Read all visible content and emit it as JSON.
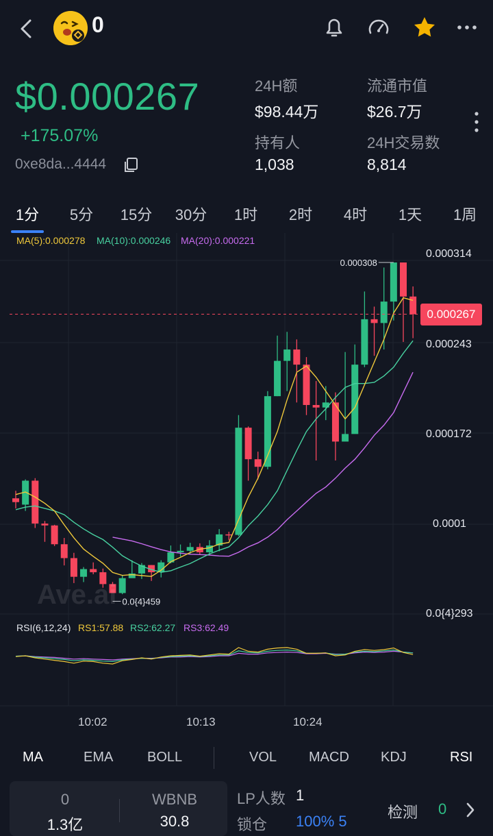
{
  "header": {
    "token_name": "0",
    "back_icon": "chevron-left-icon",
    "icons": [
      "bell-icon",
      "gauge-icon",
      "star-icon",
      "more-horizontal-icon"
    ],
    "star_color": "#f5b300"
  },
  "price": {
    "value": "$0.000267",
    "change": "+175.07%",
    "address": "0xe8da...4444",
    "up_color": "#2ebd85"
  },
  "stats": [
    {
      "label": "24H额",
      "value": "$98.44万"
    },
    {
      "label": "流通市值",
      "value": "$26.7万"
    },
    {
      "label": "持有人",
      "value": "1,038"
    },
    {
      "label": "24H交易数",
      "value": "8,814"
    }
  ],
  "timeframes": [
    "1分",
    "5分",
    "15分",
    "30分",
    "1时",
    "2时",
    "4时",
    "1天",
    "1周"
  ],
  "selected_timeframe": "1分",
  "chart_legend": {
    "ma5": "MA(5):0.000278",
    "ma10": "MA(10):0.000246",
    "ma20": "MA(20):0.000221",
    "rsi_title": "RSI(6,12,24)",
    "rs1": "RS1:57.88",
    "rs2": "RS2:62.27",
    "rs3": "RS3:62.49"
  },
  "chart_data": {
    "type": "candlestick",
    "y_axis_labels": [
      "0.000314",
      "0.000243",
      "0.000172",
      "0.0001",
      "0.0{4}293"
    ],
    "x_axis_labels": [
      "10:02",
      "10:13",
      "10:24"
    ],
    "current_price_label": "0.000267",
    "high_label": "0.000308",
    "low_label": "0.0{4}459",
    "watermark": "Ave.ai",
    "ylim": [
      2.93e-05,
      0.000314
    ],
    "candles": [
      [
        0.000121,
        0.000118,
        0.000127,
        0.000113
      ],
      [
        0.000116,
        0.000135,
        0.000136,
        0.000111
      ],
      [
        0.000135,
        0.000101,
        0.000137,
        9.75e-05
      ],
      [
        0.000101,
        9.95e-05,
        0.000103,
        8.65e-05
      ],
      [
        9.95e-05,
        8.46e-05,
        0.0001,
        8.32e-05
      ],
      [
        8.46e-05,
        7.36e-05,
        8.96e-05,
        6.78e-05
      ],
      [
        7.36e-05,
        5.88e-05,
        7.78e-05,
        5.38e-05
      ],
      [
        5.88e-05,
        6.49e-05,
        6.65e-05,
        5.46e-05
      ],
      [
        6.49e-05,
        6.24e-05,
        7.02e-05,
        6.08e-05
      ],
      [
        6.24e-05,
        5.3e-05,
        6.53e-05,
        5.01e-05
      ],
      [
        5.3e-05,
        4.59e-05,
        5.47e-05,
        4.59e-05
      ],
      [
        4.59e-05,
        5.77e-05,
        6.03e-05,
        4.5e-05
      ],
      [
        5.77e-05,
        6.14e-05,
        7.19e-05,
        5.83e-05
      ],
      [
        6.14e-05,
        6.81e-05,
        6.97e-05,
        5.71e-05
      ],
      [
        6.81e-05,
        6.24e-05,
        6.81e-05,
        5.55e-05
      ],
      [
        6.24e-05,
        7.02e-05,
        7.19e-05,
        5.83e-05
      ],
      [
        7.02e-05,
        7.82e-05,
        8.36e-05,
        6.94e-05
      ],
      [
        7.82e-05,
        7.94e-05,
        8.44e-05,
        7.48e-05
      ],
      [
        7.94e-05,
        8.24e-05,
        8.57e-05,
        7.65e-05
      ],
      [
        8.24e-05,
        7.82e-05,
        8.53e-05,
        7.65e-05
      ],
      [
        7.82e-05,
        8.36e-05,
        8.78e-05,
        7.57e-05
      ],
      [
        8.36e-05,
        9.24e-05,
        9.66e-05,
        7.9e-05
      ],
      [
        9.24e-05,
        9.2e-05,
        9.45e-05,
        8.78e-05
      ],
      [
        9.2e-05,
        0.000177,
        0.000187,
        9.12e-05
      ],
      [
        0.000177,
        0.000152,
        0.000178,
        0.000135
      ],
      [
        0.000152,
        0.000146,
        0.000158,
        0.000136
      ],
      [
        0.000146,
        0.000202,
        0.000206,
        0.000144
      ],
      [
        0.000202,
        0.00023,
        0.00025,
        0.000202
      ],
      [
        0.00023,
        0.000239,
        0.000253,
        0.000206
      ],
      [
        0.000239,
        0.000227,
        0.000247,
        0.000197
      ],
      [
        0.000227,
        0.000195,
        0.000233,
        0.000187
      ],
      [
        0.000195,
        0.000193,
        0.000214,
        0.000151
      ],
      [
        0.000193,
        0.000197,
        0.00021,
        0.000183
      ],
      [
        0.000197,
        0.000166,
        0.000205,
        0.000151
      ],
      [
        0.000166,
        0.000172,
        0.000237,
        0.000168
      ],
      [
        0.000172,
        0.000227,
        0.000243,
        0.000176
      ],
      [
        0.000227,
        0.000263,
        0.000285,
        0.000225
      ],
      [
        0.000263,
        0.00026,
        0.000273,
        0.000234
      ],
      [
        0.00026,
        0.000277,
        0.000304,
        0.000239
      ],
      [
        0.000277,
        0.000308,
        0.000308,
        0.000262
      ],
      [
        0.000308,
        0.000281,
        0.000308,
        0.000245
      ],
      [
        0.000281,
        0.000267,
        0.000289,
        0.000248
      ]
    ],
    "ma5": [
      0.000124,
      0.000126,
      0.000122,
      0.000117,
      0.000111,
      0.0001,
      8.97e-05,
      8.08e-05,
      7.5e-05,
      6.95e-05,
      6.22e-05,
      5.99e-05,
      6.05e-05,
      5.97e-05,
      5.91e-05,
      6.4e-05,
      7.07e-05,
      7.43e-05,
      7.8e-05,
      8.07e-05,
      8.18e-05,
      8.47e-05,
      8.6e-05,
      0.000104,
      0.000122,
      0.000137,
      0.000155,
      0.000174,
      0.000199,
      0.000221,
      0.000226,
      0.000217,
      0.000206,
      0.000195,
      0.000184,
      0.000193,
      0.000211,
      0.000229,
      0.000247,
      0.000268,
      0.00028,
      0.000278
    ],
    "ma10": [
      0.000112,
      0.000114,
      0.000115,
      0.000113,
      0.000111,
      0.000108,
      0.000102,
      9.68e-05,
      9.22e-05,
      8.83e-05,
      8.22e-05,
      7.55e-05,
      7.11e-05,
      6.73e-05,
      6.45e-05,
      6.24e-05,
      6.36e-05,
      6.65e-05,
      6.93e-05,
      7.32e-05,
      7.69e-05,
      7.99e-05,
      8.25e-05,
      8.97e-05,
      9.93e-05,
      0.000107,
      0.000116,
      0.000127,
      0.000143,
      0.000159,
      0.000174,
      0.000184,
      0.000192,
      0.000201,
      0.000209,
      0.000212,
      0.000212,
      0.000213,
      0.000218,
      0.000225,
      0.000236,
      0.000246
    ],
    "ma20": [
      null,
      null,
      null,
      null,
      null,
      null,
      null,
      null,
      null,
      null,
      9.02e-05,
      8.87e-05,
      8.72e-05,
      8.5e-05,
      8.26e-05,
      8.03e-05,
      7.85e-05,
      7.75e-05,
      7.67e-05,
      7.64e-05,
      7.6e-05,
      7.53e-05,
      7.51e-05,
      7.82e-05,
      8.25e-05,
      8.57e-05,
      9.02e-05,
      9.62e-05,
      0.000104,
      0.000111,
      0.000118,
      0.000125,
      0.00013,
      0.000137,
      0.000145,
      0.000152,
      0.000161,
      0.000171,
      0.000179,
      0.000189,
      0.000205,
      0.000221
    ],
    "rsi1": [
      53,
      55,
      50,
      47,
      44,
      41,
      37,
      42,
      41,
      37,
      35,
      43,
      46,
      50,
      47,
      52,
      55,
      56,
      57,
      54,
      57,
      60,
      59,
      75,
      66,
      64,
      71,
      74,
      75,
      71,
      61,
      61,
      62,
      55,
      57,
      66,
      70,
      68,
      70,
      74,
      63,
      58
    ],
    "rsi2": [
      54,
      55,
      52,
      50,
      48,
      46,
      43,
      45,
      44,
      42,
      41,
      45,
      47,
      49,
      48,
      51,
      53,
      54,
      55,
      53,
      55,
      57,
      57,
      67,
      63,
      62,
      66,
      68,
      69,
      67,
      61,
      61,
      62,
      58,
      59,
      64,
      66,
      65,
      67,
      69,
      64,
      62
    ],
    "rsi3": [
      54,
      55,
      53,
      52,
      51,
      49,
      47,
      48,
      47,
      46,
      45,
      47,
      48,
      49,
      49,
      50,
      52,
      52,
      53,
      52,
      53,
      55,
      55,
      61,
      59,
      59,
      62,
      63,
      64,
      63,
      60,
      60,
      61,
      59,
      59,
      62,
      64,
      63,
      64,
      66,
      64,
      62
    ]
  },
  "indicators": {
    "main": [
      "MA",
      "EMA",
      "BOLL"
    ],
    "sub": [
      "VOL",
      "MACD",
      "KDJ",
      "RSI"
    ],
    "selected_main": "MA",
    "selected_sub": "RSI"
  },
  "pool": {
    "base_label": "0",
    "base_value": "1.3亿",
    "quote_label": "WBNB",
    "quote_value": "30.8",
    "lp_label": "LP人数",
    "lp_value": "1",
    "lock_label": "锁仓",
    "lock_value": "100% 5",
    "detect_label": "检测",
    "detect_count": "0"
  },
  "colors": {
    "up": "#2ebd85",
    "down": "#f6465d",
    "ma5": "#f0c93b",
    "ma10": "#48d1a0",
    "ma20": "#c86cf0",
    "accent": "#3b82f6"
  }
}
